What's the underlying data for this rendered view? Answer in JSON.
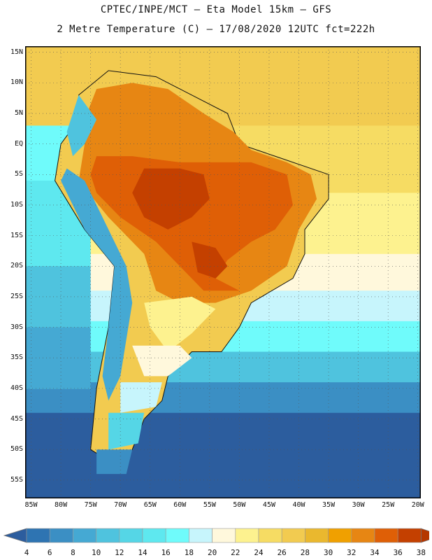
{
  "title_line1": "CPTEC/INPE/MCT –  Eta Model 15km – GFS",
  "title_line2": "2 Metre Temperature (C) – 17/08/2020 12UTC fct=222h",
  "lat_labels": [
    "15N",
    "10N",
    "5N",
    "EQ",
    "5S",
    "10S",
    "15S",
    "20S",
    "25S",
    "30S",
    "35S",
    "40S",
    "45S",
    "50S",
    "55S"
  ],
  "lon_labels": [
    "85W",
    "80W",
    "75W",
    "70W",
    "65W",
    "60W",
    "55W",
    "50W",
    "45W",
    "40W",
    "35W",
    "30W",
    "25W",
    "20W"
  ],
  "colorbar": {
    "labels": [
      "4",
      "6",
      "8",
      "10",
      "12",
      "14",
      "16",
      "18",
      "20",
      "22",
      "24",
      "26",
      "28",
      "30",
      "32",
      "34",
      "36",
      "38"
    ],
    "colors": [
      "#2c5d9e",
      "#2e74b2",
      "#3b8fc4",
      "#45a9d3",
      "#4fc3de",
      "#55d6e6",
      "#5ee8ef",
      "#6ffbfb",
      "#c7f5fc",
      "#fff8dc",
      "#fdf28f",
      "#f6dc63",
      "#f2cb50",
      "#eab82e",
      "#f0a000",
      "#e78613",
      "#df5f06",
      "#c44000",
      "#b53700"
    ]
  },
  "map": {
    "ocean_bands": [
      {
        "from_lat": 16,
        "to_lat": 3,
        "color": "#f2cb50"
      },
      {
        "from_lat": 3,
        "to_lat": -8,
        "color": "#f6dc63"
      },
      {
        "from_lat": -8,
        "to_lat": -18,
        "color": "#fdf28f"
      },
      {
        "from_lat": -18,
        "to_lat": -24,
        "color": "#fff8dc"
      },
      {
        "from_lat": -24,
        "to_lat": -29,
        "color": "#c7f5fc"
      },
      {
        "from_lat": -29,
        "to_lat": -34,
        "color": "#6ffbfb"
      },
      {
        "from_lat": -34,
        "to_lat": -39,
        "color": "#4fc3de"
      },
      {
        "from_lat": -39,
        "to_lat": -44,
        "color": "#3b8fc4"
      },
      {
        "from_lat": -44,
        "to_lat": -58,
        "color": "#2c5d9e"
      }
    ],
    "pacific_bands": [
      {
        "from_lat": 3,
        "to_lat": -6,
        "color": "#6ffbfb"
      },
      {
        "from_lat": -6,
        "to_lat": -20,
        "color": "#5ee8ef"
      },
      {
        "from_lat": -20,
        "to_lat": -30,
        "color": "#4fc3de"
      },
      {
        "from_lat": -30,
        "to_lat": -40,
        "color": "#45a9d3"
      }
    ],
    "land_zones": [
      {
        "color": "#f2cb50",
        "pts": [
          [
            -77,
            8
          ],
          [
            -72,
            12
          ],
          [
            -64,
            11
          ],
          [
            -60,
            9
          ],
          [
            -52,
            5
          ],
          [
            -50,
            0
          ],
          [
            -44,
            -2
          ],
          [
            -35,
            -5
          ],
          [
            -35,
            -9
          ],
          [
            -39,
            -14
          ],
          [
            -39,
            -18
          ],
          [
            -41,
            -22
          ],
          [
            -48,
            -26
          ],
          [
            -50,
            -30
          ],
          [
            -53,
            -34
          ],
          [
            -58,
            -34
          ],
          [
            -62,
            -38
          ],
          [
            -63,
            -42
          ],
          [
            -66,
            -45
          ],
          [
            -68,
            -50
          ],
          [
            -70,
            -53
          ],
          [
            -75,
            -50
          ],
          [
            -74,
            -40
          ],
          [
            -72,
            -30
          ],
          [
            -71,
            -20
          ],
          [
            -76,
            -14
          ],
          [
            -81,
            -6
          ],
          [
            -80,
            0
          ],
          [
            -77,
            4
          ]
        ]
      },
      {
        "color": "#e78613",
        "pts": [
          [
            -74,
            9
          ],
          [
            -68,
            10
          ],
          [
            -62,
            9
          ],
          [
            -56,
            5
          ],
          [
            -51,
            2
          ],
          [
            -48,
            -1
          ],
          [
            -42,
            -3
          ],
          [
            -38,
            -5
          ],
          [
            -37,
            -9
          ],
          [
            -40,
            -14
          ],
          [
            -42,
            -20
          ],
          [
            -48,
            -24
          ],
          [
            -54,
            -26
          ],
          [
            -60,
            -26
          ],
          [
            -64,
            -24
          ],
          [
            -66,
            -18
          ],
          [
            -72,
            -12
          ],
          [
            -77,
            -6
          ],
          [
            -76,
            0
          ],
          [
            -76,
            4
          ]
        ]
      },
      {
        "color": "#df5f06",
        "pts": [
          [
            -74,
            -2
          ],
          [
            -68,
            -2
          ],
          [
            -60,
            -3
          ],
          [
            -54,
            -3
          ],
          [
            -48,
            -3
          ],
          [
            -42,
            -5
          ],
          [
            -41,
            -10
          ],
          [
            -44,
            -14
          ],
          [
            -48,
            -16
          ],
          [
            -52,
            -19
          ],
          [
            -54,
            -22
          ],
          [
            -50,
            -24
          ],
          [
            -56,
            -24
          ],
          [
            -60,
            -20
          ],
          [
            -64,
            -16
          ],
          [
            -70,
            -12
          ],
          [
            -74,
            -8
          ],
          [
            -75,
            -5
          ]
        ]
      },
      {
        "color": "#c44000",
        "pts": [
          [
            -66,
            -4
          ],
          [
            -60,
            -4
          ],
          [
            -56,
            -5
          ],
          [
            -55,
            -9
          ],
          [
            -58,
            -12
          ],
          [
            -62,
            -14
          ],
          [
            -66,
            -12
          ],
          [
            -68,
            -8
          ]
        ]
      },
      {
        "color": "#c44000",
        "pts": [
          [
            -58,
            -16
          ],
          [
            -54,
            -17
          ],
          [
            -52,
            -20
          ],
          [
            -54,
            -22
          ],
          [
            -57,
            -21
          ]
        ]
      },
      {
        "color": "#fdf28f",
        "pts": [
          [
            -66,
            -26
          ],
          [
            -58,
            -25
          ],
          [
            -54,
            -27
          ],
          [
            -58,
            -31
          ],
          [
            -62,
            -34
          ],
          [
            -65,
            -30
          ]
        ]
      },
      {
        "color": "#fff8dc",
        "pts": [
          [
            -68,
            -33
          ],
          [
            -60,
            -33
          ],
          [
            -58,
            -35
          ],
          [
            -62,
            -38
          ],
          [
            -66,
            -38
          ]
        ]
      },
      {
        "color": "#c7f5fc",
        "pts": [
          [
            -70,
            -39
          ],
          [
            -63,
            -39
          ],
          [
            -64,
            -43
          ],
          [
            -70,
            -44
          ]
        ]
      },
      {
        "color": "#55d6e6",
        "pts": [
          [
            -72,
            -44
          ],
          [
            -66,
            -44
          ],
          [
            -67,
            -49
          ],
          [
            -72,
            -50
          ]
        ]
      },
      {
        "color": "#3b8fc4",
        "pts": [
          [
            -74,
            -50
          ],
          [
            -68,
            -50
          ],
          [
            -69,
            -54
          ],
          [
            -74,
            -54
          ]
        ]
      },
      {
        "color": "#45a9d3",
        "pts": [
          [
            -79,
            -4
          ],
          [
            -76,
            -6
          ],
          [
            -72,
            -14
          ],
          [
            -69,
            -20
          ],
          [
            -68,
            -26
          ],
          [
            -69,
            -32
          ],
          [
            -70,
            -38
          ],
          [
            -72,
            -42
          ],
          [
            -73,
            -38
          ],
          [
            -72,
            -30
          ],
          [
            -71,
            -20
          ],
          [
            -76,
            -14
          ],
          [
            -80,
            -6
          ]
        ]
      },
      {
        "color": "#4fc3de",
        "pts": [
          [
            -77,
            8
          ],
          [
            -74,
            4
          ],
          [
            -76,
            0
          ],
          [
            -78,
            -2
          ],
          [
            -79,
            2
          ]
        ]
      }
    ]
  }
}
